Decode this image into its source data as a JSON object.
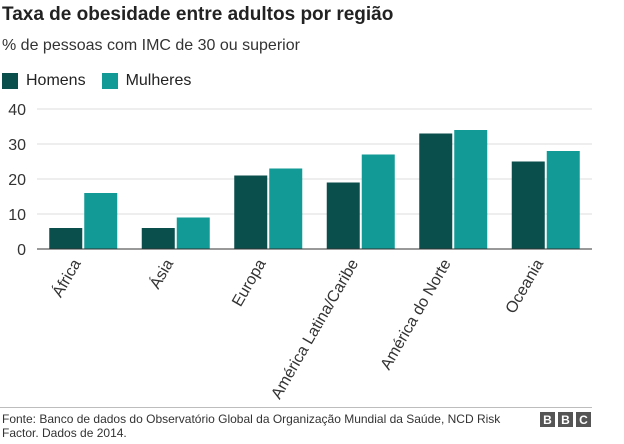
{
  "title": "Taxa de obesidade entre adultos por região",
  "subtitle": "% de pessoas com IMC de 30 ou superior",
  "legend": [
    {
      "name": "Homens",
      "color": "#0a4f4b"
    },
    {
      "name": "Mulheres",
      "color": "#129a96"
    }
  ],
  "chart_data": {
    "type": "bar",
    "categories": [
      "África",
      "Ásia",
      "Europa",
      "América Latina/Caribe",
      "América do Norte",
      "Oceania"
    ],
    "series": [
      {
        "name": "Homens",
        "color": "#0a4f4b",
        "values": [
          6,
          6,
          21,
          19,
          33,
          25
        ]
      },
      {
        "name": "Mulheres",
        "color": "#129a96",
        "values": [
          16,
          9,
          23,
          27,
          34,
          28
        ]
      }
    ],
    "y_ticks": [
      0,
      10,
      20,
      30,
      40
    ],
    "ylim": [
      0,
      40
    ],
    "grid": true,
    "legend_position": "top-left"
  },
  "source": "Fonte: Banco de dados do Observatório Global da Organização Mundial da Saúde, NCD Risk Factor. Dados de 2014.",
  "logo": "BBC"
}
